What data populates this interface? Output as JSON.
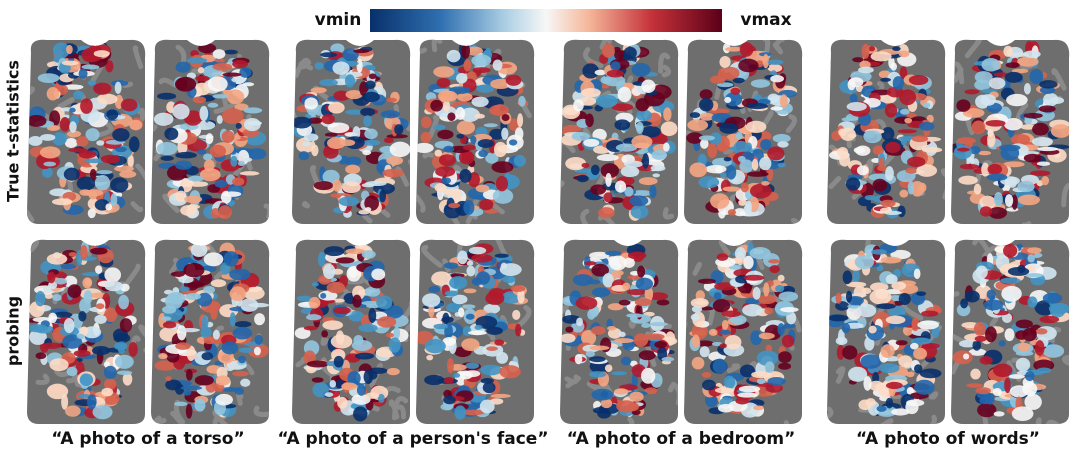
{
  "colorbar": {
    "min_label": "vmin",
    "max_label": "vmax"
  },
  "rows": [
    "True t-statistics",
    "probing"
  ],
  "columns": [
    "“A photo of a torso”",
    "“A photo of a person's face”",
    "“A photo of a bedroom”",
    "“A photo of words”"
  ]
}
